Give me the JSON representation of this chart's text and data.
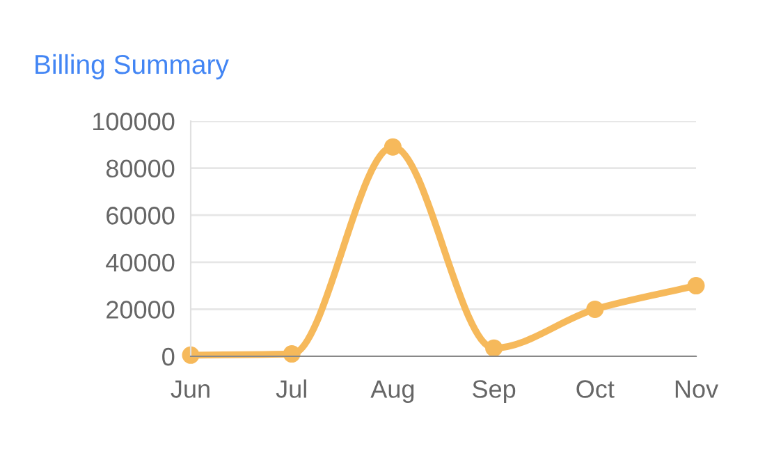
{
  "chart_data": {
    "type": "line",
    "title": "Billing Summary",
    "categories": [
      "Jun",
      "Jul",
      "Aug",
      "Sep",
      "Oct",
      "Nov"
    ],
    "series": [
      {
        "color": "#f6b95b",
        "values": [
          500,
          1000,
          89000,
          3500,
          20000,
          30000
        ]
      }
    ],
    "ylim": [
      0,
      100000
    ],
    "yticks": [
      0,
      20000,
      40000,
      60000,
      80000,
      100000
    ],
    "grid": "y",
    "marker": "circle",
    "line_style": "solid",
    "legend": false
  }
}
